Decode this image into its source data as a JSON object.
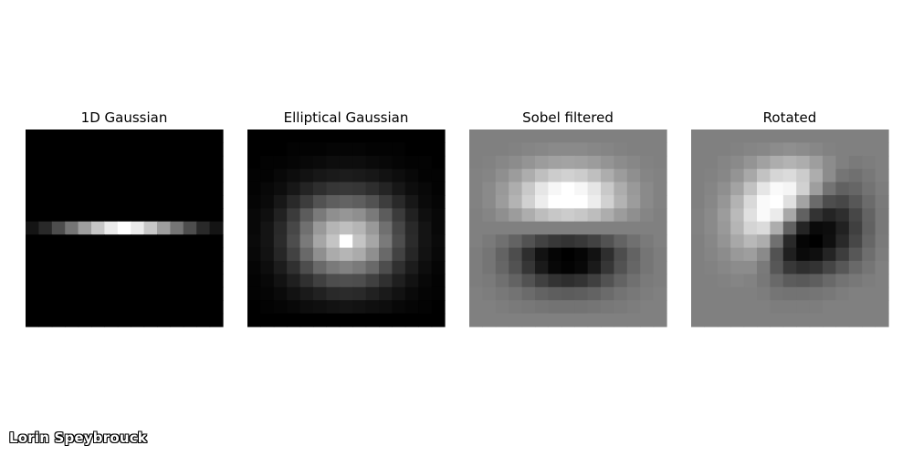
{
  "chart_data": [
    {
      "type": "heatmap",
      "title": "1D Gaussian",
      "colormap": "gray",
      "grid": false,
      "axes_visible": false,
      "values": [
        [
          0,
          0,
          0,
          0,
          0,
          0,
          0,
          0,
          0,
          0,
          0,
          0,
          0,
          0,
          0
        ],
        [
          0,
          0,
          0,
          0,
          0,
          0,
          0,
          0,
          0,
          0,
          0,
          0,
          0,
          0,
          0
        ],
        [
          0,
          0,
          0,
          0,
          0,
          0,
          0,
          0,
          0,
          0,
          0,
          0,
          0,
          0,
          0
        ],
        [
          0,
          0,
          0,
          0,
          0,
          0,
          0,
          0,
          0,
          0,
          0,
          0,
          0,
          0,
          0
        ],
        [
          0,
          0,
          0,
          0,
          0,
          0,
          0,
          0,
          0,
          0,
          0,
          0,
          0,
          0,
          0
        ],
        [
          0,
          0,
          0,
          0,
          0,
          0,
          0,
          0,
          0,
          0,
          0,
          0,
          0,
          0,
          0
        ],
        [
          0,
          0,
          0,
          0,
          0,
          0,
          0,
          0,
          0,
          0,
          0,
          0,
          0,
          0,
          0
        ],
        [
          0.08,
          0.16,
          0.3,
          0.46,
          0.62,
          0.78,
          0.92,
          1.0,
          0.92,
          0.78,
          0.62,
          0.46,
          0.3,
          0.16,
          0.08
        ],
        [
          0,
          0,
          0,
          0,
          0,
          0,
          0,
          0,
          0,
          0,
          0,
          0,
          0,
          0,
          0
        ],
        [
          0,
          0,
          0,
          0,
          0,
          0,
          0,
          0,
          0,
          0,
          0,
          0,
          0,
          0,
          0
        ],
        [
          0,
          0,
          0,
          0,
          0,
          0,
          0,
          0,
          0,
          0,
          0,
          0,
          0,
          0,
          0
        ],
        [
          0,
          0,
          0,
          0,
          0,
          0,
          0,
          0,
          0,
          0,
          0,
          0,
          0,
          0,
          0
        ],
        [
          0,
          0,
          0,
          0,
          0,
          0,
          0,
          0,
          0,
          0,
          0,
          0,
          0,
          0,
          0
        ],
        [
          0,
          0,
          0,
          0,
          0,
          0,
          0,
          0,
          0,
          0,
          0,
          0,
          0,
          0,
          0
        ],
        [
          0,
          0,
          0,
          0,
          0,
          0,
          0,
          0,
          0,
          0,
          0,
          0,
          0,
          0,
          0
        ]
      ]
    },
    {
      "type": "heatmap",
      "title": "Elliptical Gaussian",
      "colormap": "gray",
      "grid": false,
      "axes_visible": false,
      "values": [
        [
          0,
          0,
          0,
          0,
          0,
          0,
          0,
          0,
          0,
          0,
          0,
          0,
          0,
          0,
          0
        ],
        [
          0,
          0,
          0,
          0.01,
          0.01,
          0.01,
          0.02,
          0.02,
          0.02,
          0.01,
          0.01,
          0.01,
          0,
          0,
          0
        ],
        [
          0,
          0.01,
          0.01,
          0.02,
          0.03,
          0.04,
          0.05,
          0.05,
          0.05,
          0.04,
          0.03,
          0.02,
          0.01,
          0.01,
          0
        ],
        [
          0.01,
          0.01,
          0.03,
          0.05,
          0.07,
          0.09,
          0.1,
          0.11,
          0.1,
          0.09,
          0.07,
          0.05,
          0.03,
          0.01,
          0.01
        ],
        [
          0.01,
          0.03,
          0.05,
          0.09,
          0.14,
          0.18,
          0.21,
          0.22,
          0.21,
          0.18,
          0.14,
          0.09,
          0.05,
          0.03,
          0.01
        ],
        [
          0.02,
          0.04,
          0.09,
          0.16,
          0.24,
          0.32,
          0.37,
          0.39,
          0.37,
          0.32,
          0.24,
          0.16,
          0.09,
          0.04,
          0.02
        ],
        [
          0.03,
          0.06,
          0.13,
          0.23,
          0.36,
          0.48,
          0.56,
          0.59,
          0.56,
          0.48,
          0.36,
          0.23,
          0.13,
          0.06,
          0.03
        ],
        [
          0.03,
          0.08,
          0.16,
          0.28,
          0.44,
          0.6,
          0.71,
          0.75,
          0.71,
          0.6,
          0.44,
          0.28,
          0.16,
          0.08,
          0.03
        ],
        [
          0.04,
          0.08,
          0.17,
          0.3,
          0.48,
          0.65,
          0.77,
          1.0,
          0.77,
          0.65,
          0.48,
          0.3,
          0.17,
          0.08,
          0.04
        ],
        [
          0.03,
          0.07,
          0.15,
          0.26,
          0.41,
          0.56,
          0.67,
          0.71,
          0.67,
          0.56,
          0.41,
          0.26,
          0.15,
          0.07,
          0.03
        ],
        [
          0.02,
          0.05,
          0.11,
          0.19,
          0.3,
          0.41,
          0.48,
          0.51,
          0.48,
          0.41,
          0.3,
          0.19,
          0.11,
          0.05,
          0.02
        ],
        [
          0.01,
          0.03,
          0.07,
          0.12,
          0.19,
          0.25,
          0.3,
          0.31,
          0.3,
          0.25,
          0.19,
          0.12,
          0.07,
          0.03,
          0.01
        ],
        [
          0.01,
          0.02,
          0.04,
          0.07,
          0.1,
          0.13,
          0.16,
          0.17,
          0.16,
          0.13,
          0.1,
          0.07,
          0.04,
          0.02,
          0.01
        ],
        [
          0,
          0.01,
          0.02,
          0.03,
          0.05,
          0.06,
          0.07,
          0.08,
          0.07,
          0.06,
          0.05,
          0.03,
          0.02,
          0.01,
          0
        ],
        [
          0,
          0,
          0,
          0,
          0,
          0,
          0,
          0,
          0,
          0,
          0,
          0,
          0,
          0,
          0
        ]
      ]
    },
    {
      "type": "heatmap",
      "title": "Sobel filtered",
      "colormap": "gray",
      "grid": false,
      "axes_visible": false,
      "values": [
        [
          0.5,
          0.5,
          0.5,
          0.5,
          0.5,
          0.5,
          0.5,
          0.5,
          0.5,
          0.5,
          0.5,
          0.5,
          0.5,
          0.5,
          0.5
        ],
        [
          0.5,
          0.5,
          0.5,
          0.51,
          0.52,
          0.53,
          0.54,
          0.54,
          0.54,
          0.53,
          0.52,
          0.51,
          0.5,
          0.5,
          0.5
        ],
        [
          0.5,
          0.51,
          0.53,
          0.55,
          0.58,
          0.61,
          0.63,
          0.64,
          0.63,
          0.61,
          0.58,
          0.55,
          0.53,
          0.51,
          0.5
        ],
        [
          0.51,
          0.52,
          0.56,
          0.61,
          0.68,
          0.75,
          0.8,
          0.82,
          0.8,
          0.75,
          0.68,
          0.61,
          0.56,
          0.52,
          0.51
        ],
        [
          0.51,
          0.54,
          0.6,
          0.68,
          0.79,
          0.9,
          0.97,
          1.0,
          0.97,
          0.9,
          0.79,
          0.68,
          0.6,
          0.54,
          0.51
        ],
        [
          0.51,
          0.54,
          0.61,
          0.7,
          0.82,
          0.93,
          1.0,
          1.0,
          1.0,
          0.93,
          0.82,
          0.7,
          0.61,
          0.54,
          0.51
        ],
        [
          0.5,
          0.52,
          0.56,
          0.61,
          0.68,
          0.74,
          0.78,
          0.8,
          0.78,
          0.74,
          0.68,
          0.61,
          0.56,
          0.52,
          0.5
        ],
        [
          0.5,
          0.5,
          0.5,
          0.5,
          0.5,
          0.5,
          0.5,
          0.5,
          0.5,
          0.5,
          0.5,
          0.5,
          0.5,
          0.5,
          0.5
        ],
        [
          0.5,
          0.48,
          0.44,
          0.39,
          0.32,
          0.26,
          0.22,
          0.2,
          0.22,
          0.26,
          0.32,
          0.39,
          0.44,
          0.48,
          0.5
        ],
        [
          0.49,
          0.46,
          0.39,
          0.3,
          0.18,
          0.07,
          0.02,
          0.0,
          0.02,
          0.07,
          0.18,
          0.3,
          0.39,
          0.46,
          0.49
        ],
        [
          0.49,
          0.46,
          0.4,
          0.32,
          0.21,
          0.1,
          0.03,
          0.01,
          0.03,
          0.1,
          0.21,
          0.32,
          0.4,
          0.46,
          0.49
        ],
        [
          0.49,
          0.48,
          0.44,
          0.39,
          0.32,
          0.25,
          0.2,
          0.18,
          0.2,
          0.25,
          0.32,
          0.39,
          0.44,
          0.48,
          0.49
        ],
        [
          0.5,
          0.49,
          0.47,
          0.45,
          0.42,
          0.39,
          0.37,
          0.36,
          0.37,
          0.39,
          0.42,
          0.45,
          0.47,
          0.49,
          0.5
        ],
        [
          0.5,
          0.5,
          0.49,
          0.48,
          0.47,
          0.46,
          0.45,
          0.45,
          0.45,
          0.46,
          0.47,
          0.48,
          0.49,
          0.5,
          0.5
        ],
        [
          0.5,
          0.5,
          0.5,
          0.5,
          0.5,
          0.5,
          0.5,
          0.5,
          0.5,
          0.5,
          0.5,
          0.5,
          0.5,
          0.5,
          0.5
        ]
      ]
    },
    {
      "type": "heatmap",
      "title": "Rotated",
      "colormap": "gray",
      "grid": false,
      "axes_visible": false,
      "values": [
        [
          0.5,
          0.5,
          0.5,
          0.5,
          0.5,
          0.5,
          0.5,
          0.5,
          0.5,
          0.5,
          0.5,
          0.5,
          0.5,
          0.5,
          0.5
        ],
        [
          0.5,
          0.5,
          0.5,
          0.51,
          0.52,
          0.53,
          0.55,
          0.56,
          0.55,
          0.53,
          0.51,
          0.5,
          0.5,
          0.5,
          0.5
        ],
        [
          0.5,
          0.5,
          0.52,
          0.54,
          0.58,
          0.63,
          0.68,
          0.7,
          0.68,
          0.62,
          0.55,
          0.5,
          0.48,
          0.49,
          0.5
        ],
        [
          0.5,
          0.51,
          0.53,
          0.58,
          0.66,
          0.76,
          0.84,
          0.86,
          0.8,
          0.68,
          0.55,
          0.46,
          0.44,
          0.47,
          0.5
        ],
        [
          0.5,
          0.52,
          0.56,
          0.64,
          0.76,
          0.9,
          0.98,
          0.96,
          0.82,
          0.62,
          0.45,
          0.38,
          0.4,
          0.45,
          0.49
        ],
        [
          0.5,
          0.53,
          0.59,
          0.7,
          0.85,
          0.98,
          1.0,
          0.88,
          0.64,
          0.42,
          0.3,
          0.28,
          0.34,
          0.42,
          0.48
        ],
        [
          0.51,
          0.54,
          0.61,
          0.73,
          0.88,
          0.98,
          0.92,
          0.66,
          0.38,
          0.2,
          0.14,
          0.18,
          0.28,
          0.39,
          0.47
        ],
        [
          0.51,
          0.54,
          0.6,
          0.71,
          0.83,
          0.86,
          0.68,
          0.38,
          0.14,
          0.04,
          0.05,
          0.13,
          0.25,
          0.38,
          0.47
        ],
        [
          0.5,
          0.53,
          0.58,
          0.66,
          0.72,
          0.68,
          0.44,
          0.16,
          0.02,
          0.0,
          0.06,
          0.16,
          0.28,
          0.4,
          0.48
        ],
        [
          0.5,
          0.52,
          0.55,
          0.6,
          0.62,
          0.54,
          0.32,
          0.12,
          0.04,
          0.06,
          0.14,
          0.24,
          0.34,
          0.43,
          0.49
        ],
        [
          0.5,
          0.51,
          0.53,
          0.55,
          0.55,
          0.48,
          0.34,
          0.22,
          0.18,
          0.2,
          0.27,
          0.34,
          0.41,
          0.46,
          0.5
        ],
        [
          0.5,
          0.5,
          0.51,
          0.52,
          0.51,
          0.47,
          0.41,
          0.36,
          0.35,
          0.37,
          0.41,
          0.45,
          0.47,
          0.49,
          0.5
        ],
        [
          0.5,
          0.5,
          0.5,
          0.5,
          0.5,
          0.49,
          0.46,
          0.45,
          0.45,
          0.46,
          0.47,
          0.49,
          0.5,
          0.5,
          0.5
        ],
        [
          0.5,
          0.5,
          0.5,
          0.5,
          0.5,
          0.5,
          0.49,
          0.49,
          0.49,
          0.49,
          0.5,
          0.5,
          0.5,
          0.5,
          0.5
        ],
        [
          0.5,
          0.5,
          0.5,
          0.5,
          0.5,
          0.5,
          0.5,
          0.5,
          0.5,
          0.5,
          0.5,
          0.5,
          0.5,
          0.5,
          0.5
        ]
      ]
    }
  ],
  "signature": "Lorin Speybrouck"
}
